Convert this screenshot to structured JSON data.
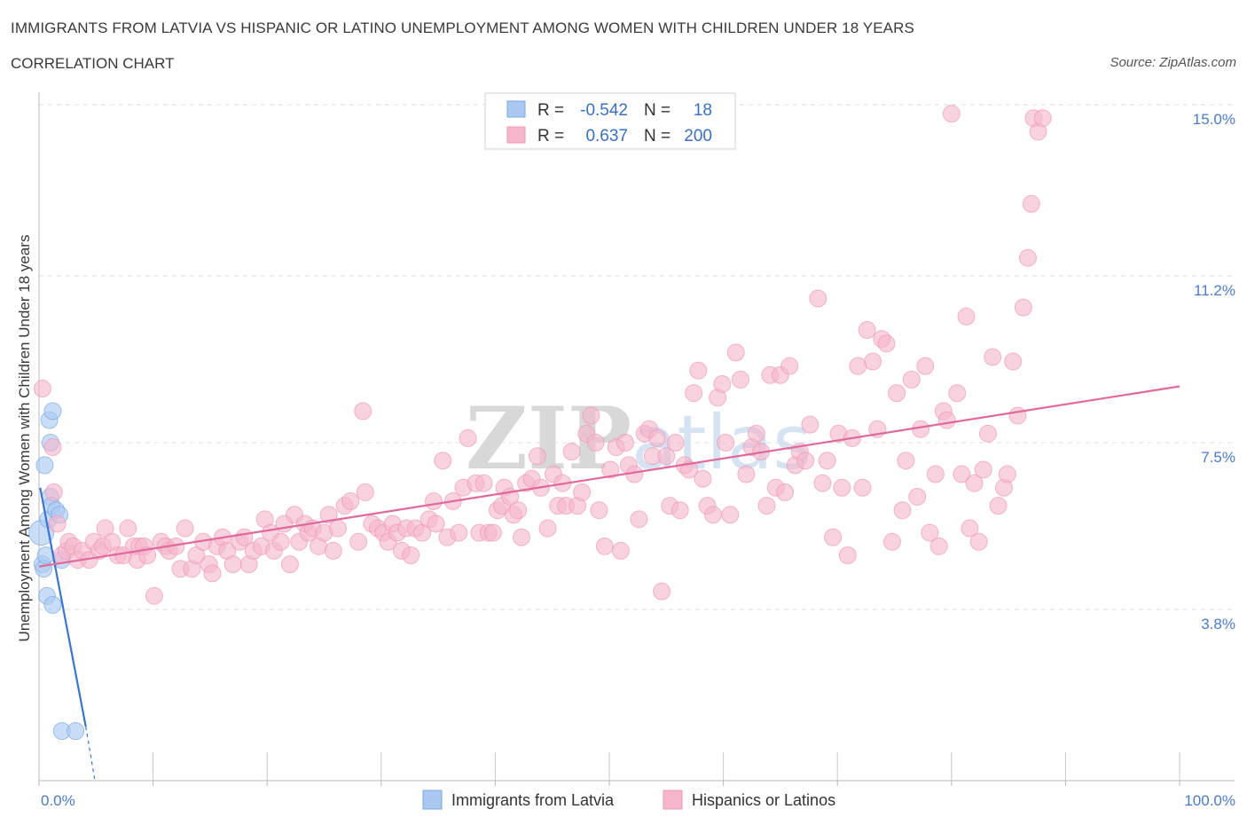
{
  "title": "IMMIGRANTS FROM LATVIA VS HISPANIC OR LATINO UNEMPLOYMENT AMONG WOMEN WITH CHILDREN UNDER 18 YEARS",
  "subtitle": "CORRELATION CHART",
  "source": "Source: ZipAtlas.com",
  "watermark": "ZIPatlas",
  "chart_data": {
    "type": "scatter",
    "ylabel": "Unemployment Among Women with Children Under 18 years",
    "xlabel": "",
    "xlim": [
      0,
      100
    ],
    "ylim": [
      0,
      15.0
    ],
    "x_tick_labels": [
      "0.0%",
      "100.0%"
    ],
    "y_ticks": [
      3.8,
      7.5,
      11.2,
      15.0
    ],
    "y_tick_labels": [
      "3.8%",
      "7.5%",
      "11.2%",
      "15.0%"
    ],
    "legend": [
      {
        "name": "Immigrants from Latvia",
        "R_label": "R =",
        "R": "-0.542",
        "N_label": "N =",
        "N": "18",
        "color": "#aac8f0"
      },
      {
        "name": "Hispanics or Latinos",
        "R_label": "R =",
        "R": "0.637",
        "N_label": "N =",
        "N": "200",
        "color": "#f5b6cb"
      }
    ],
    "series": [
      {
        "name": "Immigrants from Latvia",
        "color": "#aac8f0",
        "stroke": "#7aa8e6",
        "trend": {
          "x0": 0.1,
          "y0": 6.5,
          "x1": 4.1,
          "y1": 1.2,
          "dash_to_x": 4.9,
          "dash_to_y": 0.0,
          "color": "#3a75d0"
        },
        "points": [
          [
            0.2,
            5.5
          ],
          [
            0.3,
            4.8
          ],
          [
            0.4,
            4.7
          ],
          [
            0.5,
            7.0
          ],
          [
            0.6,
            5.0
          ],
          [
            0.7,
            4.1
          ],
          [
            0.8,
            5.8
          ],
          [
            0.9,
            8.0
          ],
          [
            1.0,
            7.5
          ],
          [
            1.0,
            6.3
          ],
          [
            1.1,
            6.1
          ],
          [
            1.2,
            3.9
          ],
          [
            1.2,
            8.2
          ],
          [
            1.5,
            6.0
          ],
          [
            1.8,
            5.9
          ],
          [
            2.0,
            4.9
          ],
          [
            2.0,
            1.1
          ],
          [
            3.2,
            1.1
          ]
        ]
      },
      {
        "name": "Hispanics or Latinos",
        "color": "#f5b6cb",
        "stroke": "#ee9ab6",
        "trend": {
          "x0": 0.0,
          "y0": 4.75,
          "x1": 100.0,
          "y1": 8.75,
          "color": "#e0699a"
        },
        "points": [
          [
            0.3,
            8.7
          ],
          [
            1.2,
            7.4
          ],
          [
            1.3,
            6.4
          ],
          [
            1.6,
            5.7
          ],
          [
            2.0,
            5.0
          ],
          [
            2.4,
            5.1
          ],
          [
            2.6,
            5.3
          ],
          [
            3.0,
            5.2
          ],
          [
            3.4,
            4.9
          ],
          [
            3.8,
            5.1
          ],
          [
            4.4,
            4.9
          ],
          [
            4.8,
            5.3
          ],
          [
            5.3,
            5.1
          ],
          [
            5.6,
            5.2
          ],
          [
            5.8,
            5.6
          ],
          [
            6.4,
            5.3
          ],
          [
            6.9,
            5.0
          ],
          [
            7.4,
            5.0
          ],
          [
            7.8,
            5.6
          ],
          [
            8.3,
            5.2
          ],
          [
            8.6,
            4.9
          ],
          [
            8.8,
            5.2
          ],
          [
            9.2,
            5.2
          ],
          [
            9.5,
            5.0
          ],
          [
            10.1,
            4.1
          ],
          [
            10.7,
            5.3
          ],
          [
            11.1,
            5.2
          ],
          [
            11.4,
            5.1
          ],
          [
            12.0,
            5.2
          ],
          [
            12.4,
            4.7
          ],
          [
            12.8,
            5.6
          ],
          [
            13.4,
            4.7
          ],
          [
            13.8,
            5.0
          ],
          [
            14.4,
            5.3
          ],
          [
            14.9,
            4.8
          ],
          [
            15.2,
            4.6
          ],
          [
            15.6,
            5.2
          ],
          [
            16.1,
            5.4
          ],
          [
            16.5,
            5.1
          ],
          [
            17.0,
            4.8
          ],
          [
            17.6,
            5.3
          ],
          [
            18.0,
            5.4
          ],
          [
            18.4,
            4.8
          ],
          [
            18.8,
            5.1
          ],
          [
            19.5,
            5.2
          ],
          [
            19.8,
            5.8
          ],
          [
            20.3,
            5.5
          ],
          [
            20.6,
            5.1
          ],
          [
            21.2,
            5.3
          ],
          [
            21.5,
            5.7
          ],
          [
            22.0,
            4.8
          ],
          [
            22.4,
            5.9
          ],
          [
            22.8,
            5.3
          ],
          [
            23.3,
            5.7
          ],
          [
            23.6,
            5.5
          ],
          [
            24.0,
            5.6
          ],
          [
            24.5,
            5.2
          ],
          [
            25.0,
            5.5
          ],
          [
            25.4,
            5.9
          ],
          [
            25.8,
            5.1
          ],
          [
            26.2,
            5.6
          ],
          [
            26.8,
            6.1
          ],
          [
            27.3,
            6.2
          ],
          [
            28.0,
            5.3
          ],
          [
            28.4,
            8.2
          ],
          [
            28.6,
            6.4
          ],
          [
            29.2,
            5.7
          ],
          [
            29.7,
            5.6
          ],
          [
            30.2,
            5.5
          ],
          [
            30.6,
            5.3
          ],
          [
            31.0,
            5.7
          ],
          [
            31.4,
            5.5
          ],
          [
            31.8,
            5.1
          ],
          [
            32.2,
            5.6
          ],
          [
            32.6,
            5.0
          ],
          [
            33.0,
            5.6
          ],
          [
            33.6,
            5.5
          ],
          [
            34.2,
            5.8
          ],
          [
            34.6,
            6.2
          ],
          [
            34.8,
            5.7
          ],
          [
            35.4,
            7.1
          ],
          [
            35.8,
            5.4
          ],
          [
            36.3,
            6.2
          ],
          [
            36.8,
            5.5
          ],
          [
            37.2,
            6.5
          ],
          [
            37.6,
            7.6
          ],
          [
            38.3,
            6.6
          ],
          [
            38.6,
            5.5
          ],
          [
            39.0,
            6.6
          ],
          [
            39.4,
            5.5
          ],
          [
            39.8,
            5.5
          ],
          [
            40.2,
            6.0
          ],
          [
            40.6,
            6.1
          ],
          [
            40.8,
            6.5
          ],
          [
            41.3,
            6.3
          ],
          [
            41.6,
            5.9
          ],
          [
            42.0,
            6.0
          ],
          [
            42.3,
            5.4
          ],
          [
            42.7,
            6.6
          ],
          [
            43.2,
            6.7
          ],
          [
            43.7,
            7.2
          ],
          [
            44.0,
            6.5
          ],
          [
            44.6,
            5.6
          ],
          [
            45.1,
            6.8
          ],
          [
            45.5,
            6.1
          ],
          [
            45.9,
            6.6
          ],
          [
            46.2,
            6.1
          ],
          [
            46.7,
            7.3
          ],
          [
            47.2,
            6.1
          ],
          [
            47.6,
            6.4
          ],
          [
            48.0,
            7.7
          ],
          [
            48.4,
            8.1
          ],
          [
            48.8,
            7.5
          ],
          [
            49.1,
            6.0
          ],
          [
            49.6,
            5.2
          ],
          [
            50.1,
            6.9
          ],
          [
            50.6,
            7.4
          ],
          [
            51.0,
            5.1
          ],
          [
            51.4,
            7.5
          ],
          [
            51.7,
            7.0
          ],
          [
            52.2,
            6.8
          ],
          [
            52.6,
            5.8
          ],
          [
            53.1,
            7.7
          ],
          [
            53.5,
            7.8
          ],
          [
            53.8,
            7.2
          ],
          [
            54.2,
            7.6
          ],
          [
            54.6,
            4.2
          ],
          [
            55.0,
            7.2
          ],
          [
            55.3,
            6.1
          ],
          [
            55.8,
            7.5
          ],
          [
            56.2,
            6.0
          ],
          [
            56.6,
            7.0
          ],
          [
            57.0,
            6.9
          ],
          [
            57.4,
            8.6
          ],
          [
            57.8,
            9.1
          ],
          [
            58.2,
            6.7
          ],
          [
            58.6,
            6.1
          ],
          [
            59.1,
            5.9
          ],
          [
            59.5,
            8.5
          ],
          [
            59.9,
            8.8
          ],
          [
            60.2,
            7.5
          ],
          [
            60.6,
            5.9
          ],
          [
            61.1,
            9.5
          ],
          [
            61.5,
            8.9
          ],
          [
            62.0,
            6.8
          ],
          [
            62.5,
            7.4
          ],
          [
            62.9,
            7.7
          ],
          [
            63.3,
            7.3
          ],
          [
            63.8,
            6.1
          ],
          [
            64.1,
            9.0
          ],
          [
            64.6,
            6.5
          ],
          [
            65.0,
            9.0
          ],
          [
            65.4,
            6.4
          ],
          [
            65.8,
            9.2
          ],
          [
            66.3,
            7.0
          ],
          [
            66.7,
            7.3
          ],
          [
            67.2,
            7.1
          ],
          [
            67.6,
            7.9
          ],
          [
            68.3,
            10.7
          ],
          [
            68.7,
            6.6
          ],
          [
            69.1,
            7.1
          ],
          [
            69.6,
            5.4
          ],
          [
            70.1,
            7.7
          ],
          [
            70.4,
            6.5
          ],
          [
            70.9,
            5.0
          ],
          [
            71.3,
            7.6
          ],
          [
            71.8,
            9.2
          ],
          [
            72.2,
            6.5
          ],
          [
            72.6,
            10.0
          ],
          [
            73.1,
            9.3
          ],
          [
            73.5,
            7.8
          ],
          [
            73.9,
            9.8
          ],
          [
            74.3,
            9.7
          ],
          [
            74.8,
            5.3
          ],
          [
            75.2,
            8.6
          ],
          [
            75.7,
            6.0
          ],
          [
            76.0,
            7.1
          ],
          [
            76.5,
            8.9
          ],
          [
            77.0,
            6.3
          ],
          [
            77.3,
            7.8
          ],
          [
            77.7,
            9.2
          ],
          [
            78.1,
            5.5
          ],
          [
            78.6,
            6.8
          ],
          [
            78.9,
            5.2
          ],
          [
            79.3,
            8.2
          ],
          [
            79.6,
            8.0
          ],
          [
            80.0,
            14.8
          ],
          [
            80.5,
            8.6
          ],
          [
            80.9,
            6.8
          ],
          [
            81.3,
            10.3
          ],
          [
            81.6,
            5.6
          ],
          [
            82.0,
            6.6
          ],
          [
            82.4,
            5.3
          ],
          [
            82.8,
            6.9
          ],
          [
            83.2,
            7.7
          ],
          [
            83.6,
            9.4
          ],
          [
            84.1,
            6.1
          ],
          [
            84.6,
            6.5
          ],
          [
            84.9,
            6.8
          ],
          [
            85.4,
            9.3
          ],
          [
            85.8,
            8.1
          ],
          [
            86.3,
            10.5
          ],
          [
            86.7,
            11.6
          ],
          [
            87.0,
            12.8
          ],
          [
            87.2,
            14.7
          ],
          [
            87.6,
            14.4
          ],
          [
            88.0,
            14.7
          ]
        ]
      }
    ]
  }
}
